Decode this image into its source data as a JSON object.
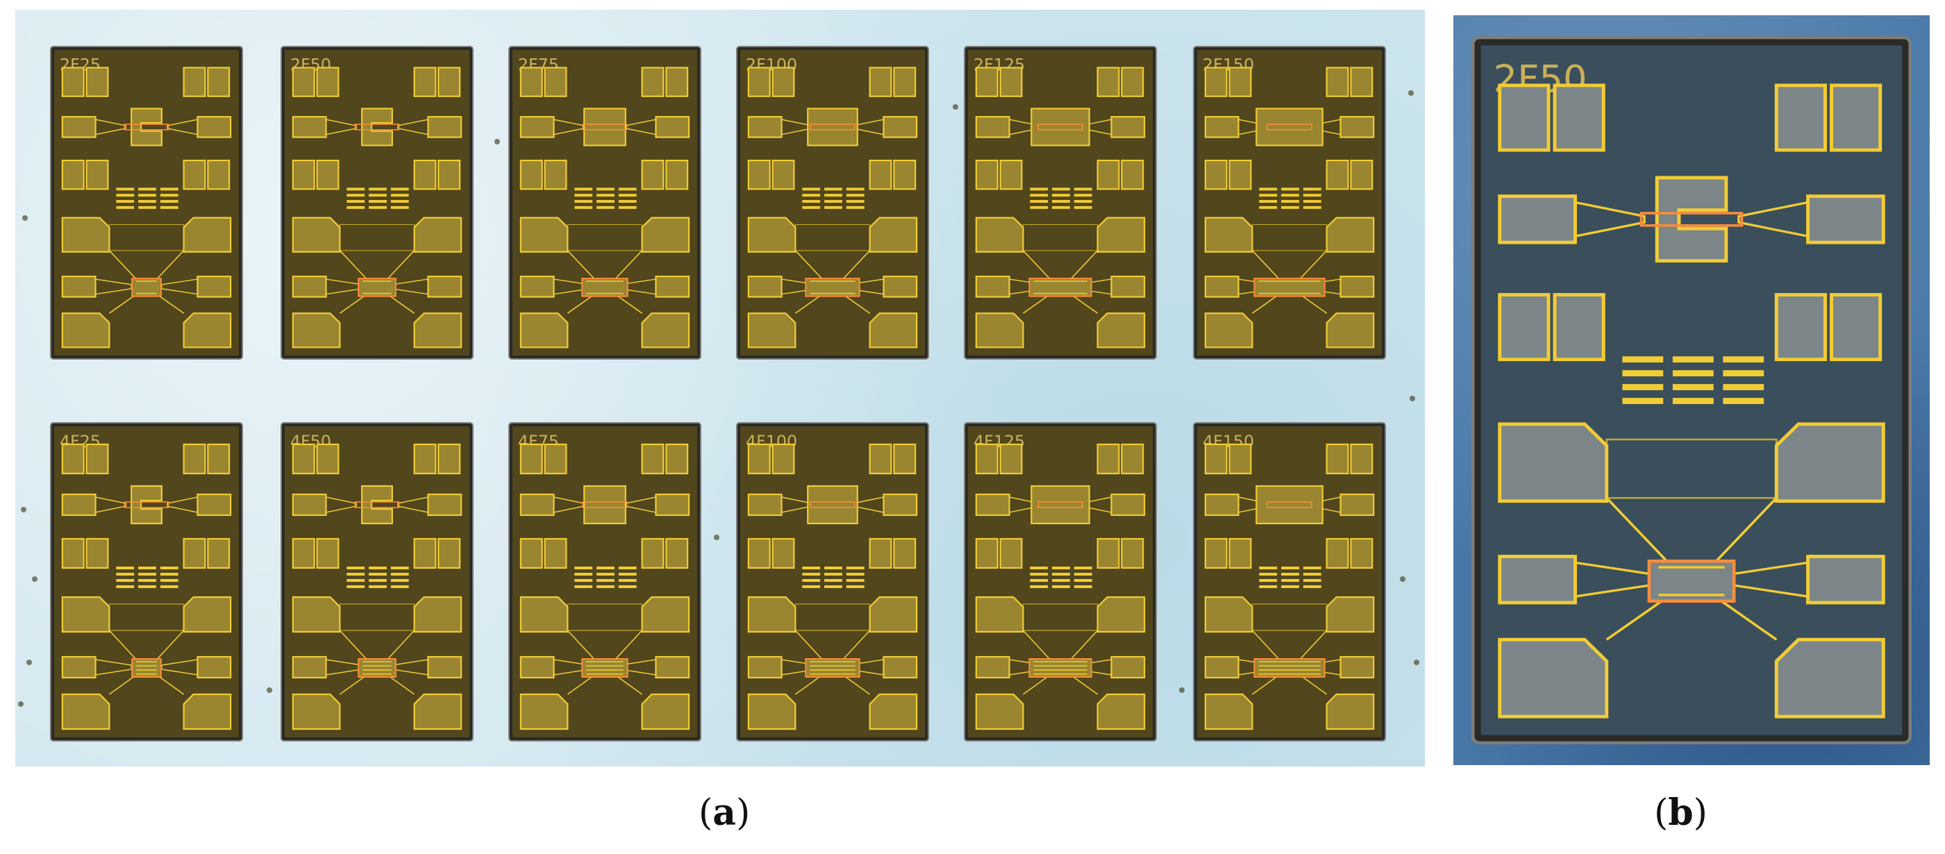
{
  "panel_a": {
    "chips": [
      {
        "label": "2F25"
      },
      {
        "label": "2F50"
      },
      {
        "label": "2F75"
      },
      {
        "label": "2F100"
      },
      {
        "label": "2F125"
      },
      {
        "label": "2F150"
      },
      {
        "label": "4F25"
      },
      {
        "label": "4F50"
      },
      {
        "label": "4F75"
      },
      {
        "label": "4F100"
      },
      {
        "label": "4F125"
      },
      {
        "label": "4F150"
      }
    ],
    "caption": {
      "open": "(",
      "letter": "a",
      "close": ")"
    }
  },
  "panel_b": {
    "chip": {
      "label": "2F50"
    },
    "caption": {
      "open": "(",
      "letter": "b",
      "close": ")"
    }
  },
  "colors": {
    "substrate_a": "#cfe6ee",
    "substrate_b": "#4a79a8",
    "chip_body_a": "#51461c",
    "chip_body_b": "#3a4e5c",
    "metal_gold": "#f1cc34",
    "metal_fill": "#9a8630",
    "metal_fill_b": "#7c8588",
    "label_color": "#c9b15a"
  }
}
